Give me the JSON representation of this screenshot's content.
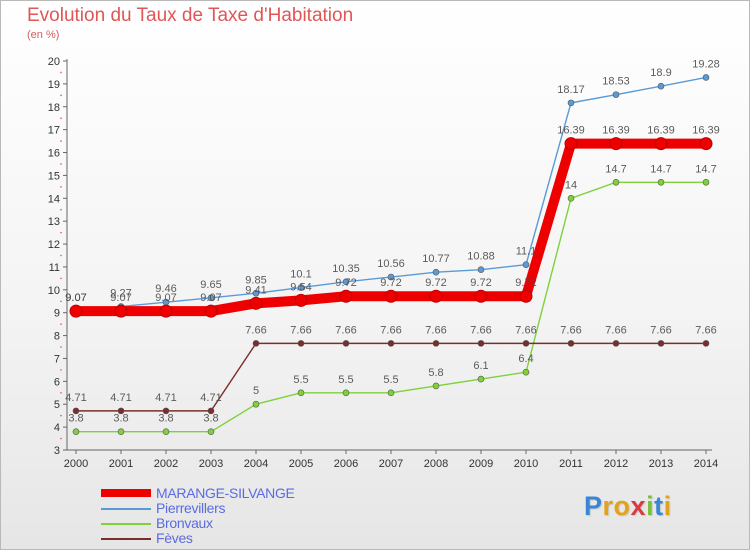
{
  "chart_data": {
    "type": "line",
    "title": "Evolution du Taux de Taxe d'Habitation",
    "unit_label": "(en %)",
    "x": [
      "2000",
      "2001",
      "2002",
      "2003",
      "2004",
      "2005",
      "2006",
      "2007",
      "2008",
      "2009",
      "2010",
      "2011",
      "2012",
      "2013",
      "2014"
    ],
    "ylim": [
      3,
      20
    ],
    "yticks": [
      3,
      4,
      5,
      6,
      7,
      8,
      9,
      10,
      11,
      12,
      13,
      14,
      15,
      16,
      17,
      18,
      19,
      20
    ],
    "grid": false,
    "legend_position": "bottom-left",
    "series": [
      {
        "name": "MARANGE-SILVANGE",
        "color": "#ee0000",
        "emphasis": true,
        "values": [
          9.07,
          9.07,
          9.07,
          9.07,
          9.41,
          9.54,
          9.72,
          9.72,
          9.72,
          9.72,
          9.72,
          16.39,
          16.39,
          16.39,
          16.39
        ],
        "labels": [
          "9.07",
          "9.07",
          "9.07",
          "9.07",
          "9.41",
          "9.54",
          "9.72",
          "9.72",
          "9.72",
          "9.72",
          "9.72",
          "16.39",
          "16.39",
          "16.39",
          "16.39"
        ]
      },
      {
        "name": "Pierrevillers",
        "color": "#5b9bd5",
        "values": [
          9.07,
          9.27,
          9.46,
          9.65,
          9.85,
          10.1,
          10.35,
          10.56,
          10.77,
          10.88,
          11.1,
          18.17,
          18.53,
          18.9,
          19.28
        ],
        "labels": [
          "9.07",
          "9.27",
          "9.46",
          "9.65",
          "9.85",
          "10.1",
          "10.35",
          "10.56",
          "10.77",
          "10.88",
          "11.1",
          "18.17",
          "18.53",
          "18.9",
          "19.28"
        ]
      },
      {
        "name": "Bronvaux",
        "color": "#7fd13b",
        "values": [
          3.8,
          3.8,
          3.8,
          3.8,
          5,
          5.5,
          5.5,
          5.5,
          5.8,
          6.1,
          6.4,
          14,
          14.7,
          14.7,
          14.7
        ],
        "labels": [
          "3.8",
          "3.8",
          "3.8",
          "3.8",
          "5",
          "5.5",
          "5.5",
          "5.5",
          "5.8",
          "6.1",
          "6.4",
          "14",
          "14.7",
          "14.7",
          "14.7"
        ]
      },
      {
        "name": "Fèves",
        "color": "#7b2c2c",
        "values": [
          4.71,
          4.71,
          4.71,
          4.71,
          7.66,
          7.66,
          7.66,
          7.66,
          7.66,
          7.66,
          7.66,
          7.66,
          7.66,
          7.66,
          7.66
        ],
        "labels": [
          "4.71",
          "4.71",
          "4.71",
          "4.71",
          "7.66",
          "7.66",
          "7.66",
          "7.66",
          "7.66",
          "7.66",
          "7.66",
          "7.66",
          "7.66",
          "7.66",
          "7.66"
        ]
      }
    ]
  },
  "logo": {
    "letters": [
      {
        "ch": "P",
        "color": "#3a86d6"
      },
      {
        "ch": "r",
        "color": "#e3a21a"
      },
      {
        "ch": "o",
        "color": "#e3a21a"
      },
      {
        "ch": "x",
        "color": "#d83c3c"
      },
      {
        "ch": "i",
        "color": "#7cbf3a"
      },
      {
        "ch": "t",
        "color": "#3a86d6"
      },
      {
        "ch": "i",
        "color": "#e3a21a"
      }
    ]
  }
}
